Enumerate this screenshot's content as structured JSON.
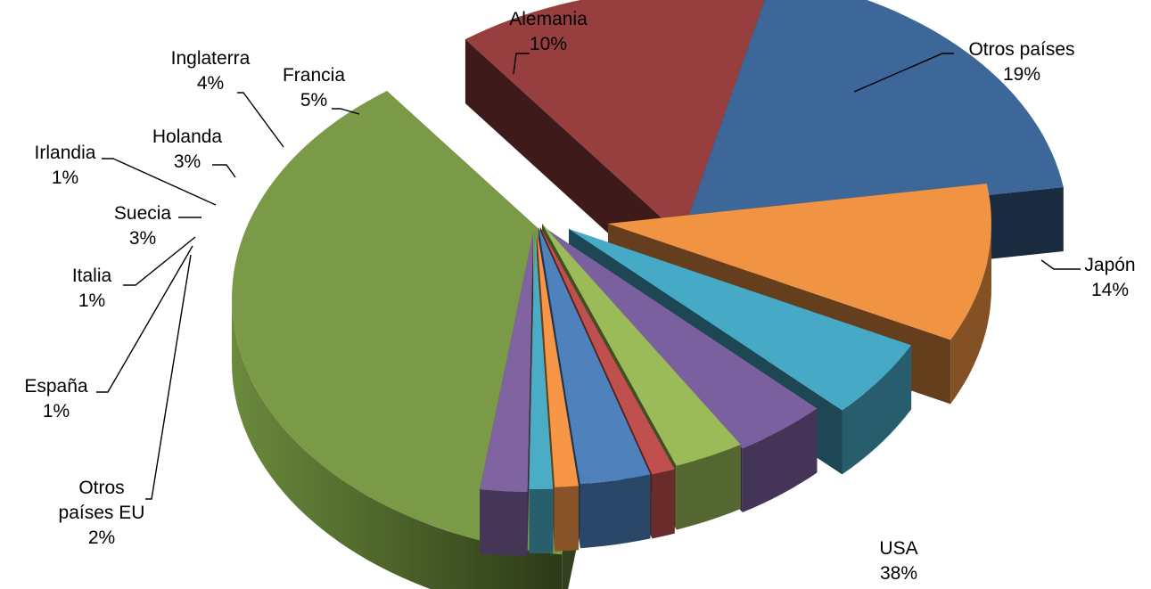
{
  "chart_data": {
    "type": "pie",
    "style": "3d-exploded",
    "slices": [
      {
        "label": "USA",
        "pct_label": "38%",
        "value": 38,
        "color": "#7a9a47"
      },
      {
        "label": "Japón",
        "pct_label": "14%",
        "value": 14,
        "color": "#973f3e"
      },
      {
        "label": "Otros países",
        "pct_label": "19%",
        "value": 19,
        "color": "#3d6798"
      },
      {
        "label": "Alemania",
        "pct_label": "10%",
        "value": 10,
        "color": "#f09444"
      },
      {
        "label": "Francia",
        "pct_label": "5%",
        "value": 5,
        "color": "#46a9c5"
      },
      {
        "label": "Inglaterra",
        "pct_label": "4%",
        "value": 4,
        "color": "#7b60a0"
      },
      {
        "label": "Holanda",
        "pct_label": "3%",
        "value": 3,
        "color": "#9bbb59"
      },
      {
        "label": "Irlandia",
        "pct_label": "1%",
        "value": 1,
        "color": "#c0504d"
      },
      {
        "label": "Suecia",
        "pct_label": "3%",
        "value": 3,
        "color": "#4f81bd"
      },
      {
        "label": "Italia",
        "pct_label": "1%",
        "value": 1,
        "color": "#f79646"
      },
      {
        "label": "España",
        "pct_label": "1%",
        "value": 1,
        "color": "#4bacc6"
      },
      {
        "label": "Otros países EU",
        "pct_label": "2%",
        "value": 2,
        "color": "#8064a2"
      }
    ]
  }
}
